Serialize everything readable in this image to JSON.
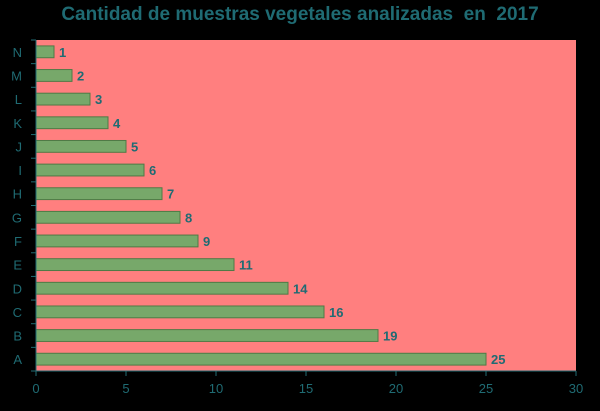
{
  "chart_data": {
    "type": "bar",
    "orientation": "horizontal",
    "title": "Cantidad de muestras vegetales analizadas  en  2017",
    "categories": [
      "A",
      "B",
      "C",
      "D",
      "E",
      "F",
      "G",
      "H",
      "I",
      "J",
      "K",
      "L",
      "M",
      "N"
    ],
    "values": [
      25,
      19,
      16,
      14,
      11,
      9,
      8,
      7,
      6,
      5,
      4,
      3,
      2,
      1
    ],
    "xlim": [
      0,
      30
    ],
    "xticks": [
      0,
      5,
      10,
      15,
      20,
      25,
      30
    ],
    "xlabel": "",
    "ylabel": "",
    "grid": false,
    "legend": "none",
    "data_labels": true,
    "colors": {
      "page_background": "#000000",
      "plot_background": "#ff7f7f",
      "bar_fill": "#77a86a",
      "bar_stroke": "#4f7a45",
      "text": "#1f6b73",
      "axis": "#1f6b73"
    }
  }
}
